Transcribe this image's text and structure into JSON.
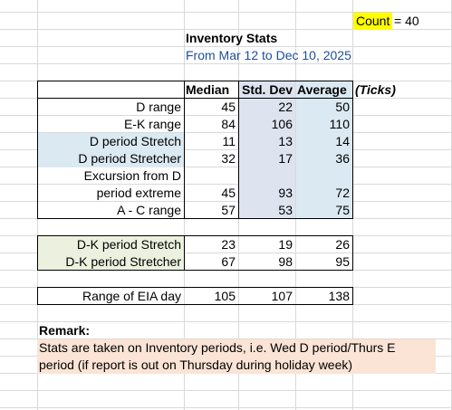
{
  "count": {
    "label": "Count",
    "equals": "= 40"
  },
  "header": {
    "title": "Inventory Stats",
    "date_range": "From Mar 12 to Dec 10, 2025",
    "columns": [
      "Median",
      "Std. Dev",
      "Average"
    ],
    "unit": "(Ticks)"
  },
  "table1": [
    {
      "label": "D range",
      "median": "45",
      "std": "22",
      "avg": "50"
    },
    {
      "label": "E-K range",
      "median": "84",
      "std": "106",
      "avg": "110"
    },
    {
      "label": "D period Stretch",
      "median": "11",
      "std": "13",
      "avg": "14"
    },
    {
      "label": "D period Stretcher",
      "median": "32",
      "std": "17",
      "avg": "36"
    },
    {
      "label": "Excursion from D",
      "median": "",
      "std": "",
      "avg": ""
    },
    {
      "label": "period extreme",
      "median": "45",
      "std": "93",
      "avg": "72"
    },
    {
      "label": "A - C range",
      "median": "57",
      "std": "53",
      "avg": "75"
    }
  ],
  "table2": [
    {
      "label": "D-K period Stretch",
      "median": "23",
      "std": "19",
      "avg": "26"
    },
    {
      "label": "D-K period Stretcher",
      "median": "67",
      "std": "98",
      "avg": "95"
    }
  ],
  "table3": [
    {
      "label": "Range of EIA day",
      "median": "105",
      "std": "107",
      "avg": "138"
    }
  ],
  "remark": {
    "title": "Remark:",
    "line1": "Stats are taken on Inventory periods, i.e. Wed D period/Thurs E",
    "line2": "period (if report is out on Thursday during holiday week)"
  },
  "colors": {
    "title_blue": "#1f4e9c",
    "fill_blue": "#dbe9f2",
    "fill_gray": "#dde3ef",
    "fill_green": "#ebf1de",
    "fill_peach": "#fbe4d5",
    "highlight_yellow": "#ffff00"
  }
}
